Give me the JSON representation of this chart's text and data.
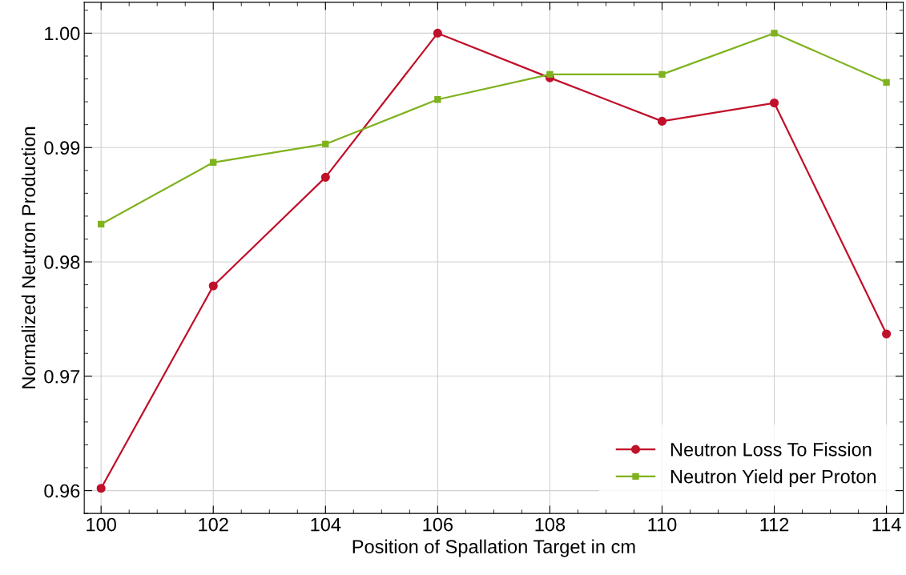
{
  "chart_data": {
    "type": "line",
    "xlabel": "Position of Spallation Target in cm",
    "ylabel": "Normalized Neutron Production",
    "x": [
      100,
      102,
      104,
      106,
      108,
      110,
      112,
      114
    ],
    "series": [
      {
        "name": "Neutron Loss To Fission",
        "color": "#c0102a",
        "marker": "circle",
        "values": [
          0.9602,
          0.9779,
          0.9874,
          1.0,
          0.9961,
          0.9923,
          0.9939,
          0.9737
        ]
      },
      {
        "name": "Neutron Yield per Proton",
        "color": "#7fb21e",
        "marker": "square",
        "values": [
          0.9833,
          0.9887,
          0.9903,
          0.9942,
          0.9964,
          0.9964,
          1.0,
          0.9957
        ]
      }
    ],
    "xlim": [
      99.7,
      114.3
    ],
    "ylim": [
      0.958,
      1.0027
    ],
    "xticks": [
      100,
      102,
      104,
      106,
      108,
      110,
      112,
      114
    ],
    "yticks": [
      0.96,
      0.97,
      0.98,
      0.99,
      {
        "value": 1.0,
        "label": "1.00"
      }
    ],
    "grid": true,
    "legend": "bottom right",
    "line_style": "solid"
  }
}
